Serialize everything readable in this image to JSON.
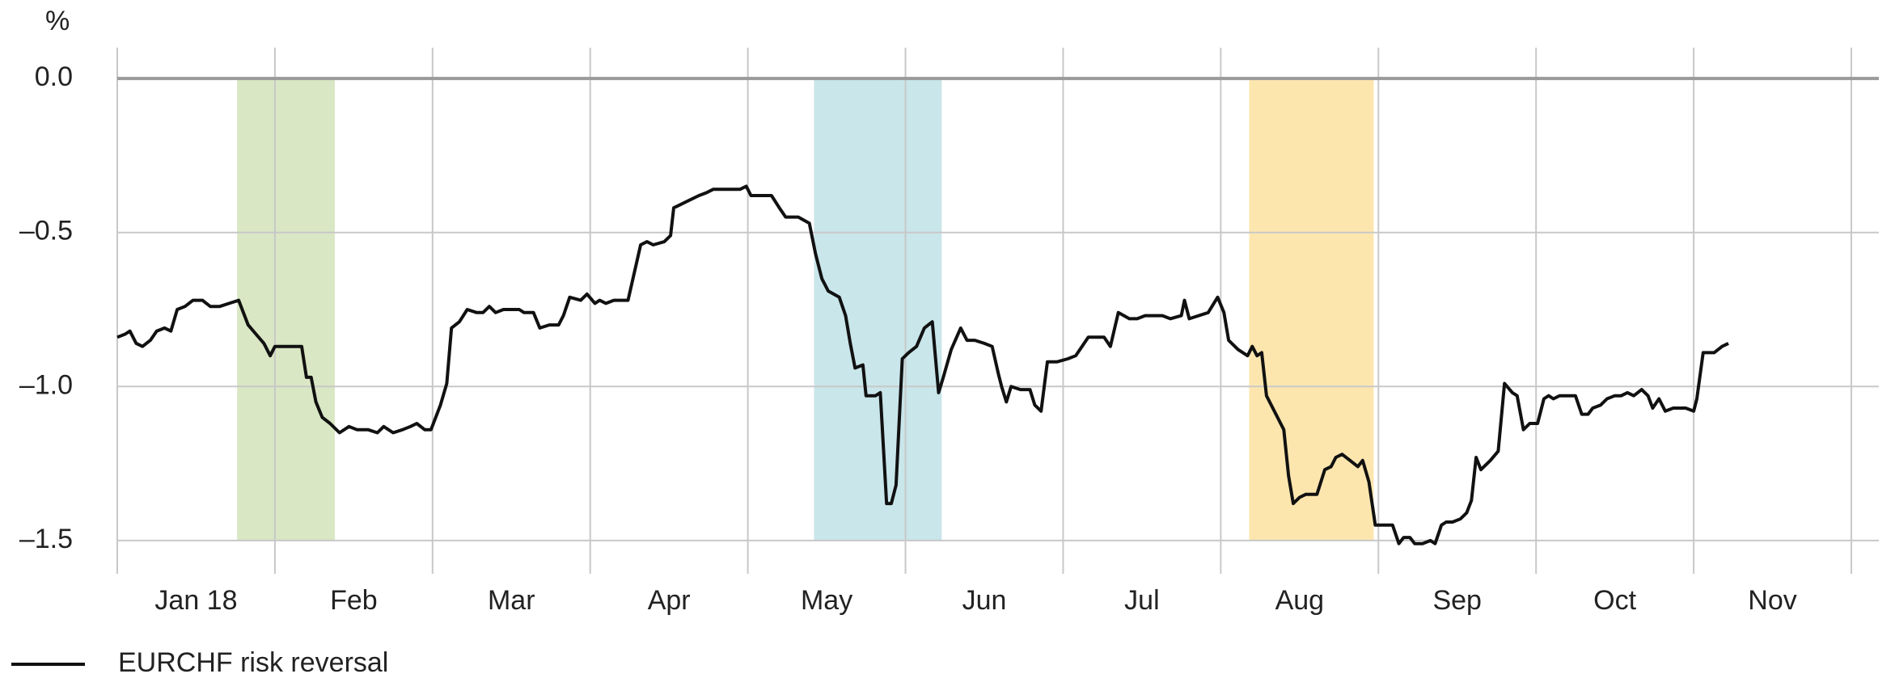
{
  "chart_data": {
    "type": "line",
    "y_unit": "%",
    "xlim": [
      0,
      11
    ],
    "xticks": [
      0,
      1,
      2,
      3,
      4,
      5,
      6,
      7,
      8,
      9,
      10,
      11
    ],
    "month_labels": [
      "Jan 18",
      "Feb",
      "Mar",
      "Apr",
      "May",
      "Jun",
      "Jul",
      "Aug",
      "Sep",
      "Oct",
      "Nov"
    ],
    "ylim": [
      -1.6,
      0.1
    ],
    "yticks": [
      {
        "value": 0,
        "label": "0.0"
      },
      {
        "value": -0.5,
        "label": "–0.5"
      },
      {
        "value": -1.0,
        "label": "–1.0"
      },
      {
        "value": -1.5,
        "label": "–1.5"
      }
    ],
    "grid": true,
    "highlights": [
      {
        "from": 0.76,
        "to": 1.38,
        "color": "#d9e7c4"
      },
      {
        "from": 4.42,
        "to": 5.23,
        "color": "#c9e6ea"
      },
      {
        "from": 7.18,
        "to": 7.97,
        "color": "#fde6ae"
      }
    ],
    "x": [
      0.0,
      0.05,
      0.08,
      0.12,
      0.16,
      0.21,
      0.25,
      0.3,
      0.34,
      0.38,
      0.43,
      0.48,
      0.54,
      0.59,
      0.65,
      0.71,
      0.77,
      0.83,
      0.88,
      0.93,
      0.97,
      1.0,
      1.05,
      1.1,
      1.17,
      1.2,
      1.23,
      1.26,
      1.3,
      1.35,
      1.41,
      1.47,
      1.52,
      1.59,
      1.65,
      1.69,
      1.75,
      1.81,
      1.86,
      1.9,
      1.95,
      1.99,
      2.05,
      2.09,
      2.12,
      2.17,
      2.22,
      2.28,
      2.32,
      2.36,
      2.4,
      2.45,
      2.49,
      2.55,
      2.58,
      2.64,
      2.68,
      2.74,
      2.8,
      2.83,
      2.87,
      2.94,
      2.98,
      3.03,
      3.06,
      3.1,
      3.15,
      3.24,
      3.28,
      3.32,
      3.36,
      3.4,
      3.47,
      3.51,
      3.53,
      3.57,
      3.61,
      3.69,
      3.74,
      3.78,
      3.83,
      3.9,
      3.95,
      3.99,
      4.02,
      4.15,
      4.2,
      4.24,
      4.28,
      4.32,
      4.39,
      4.43,
      4.47,
      4.51,
      4.58,
      4.62,
      4.65,
      4.68,
      4.73,
      4.75,
      4.81,
      4.84,
      4.88,
      4.91,
      4.94,
      4.98,
      5.02,
      5.07,
      5.12,
      5.17,
      5.21,
      5.24,
      5.29,
      5.35,
      5.39,
      5.44,
      5.5,
      5.55,
      5.59,
      5.61,
      5.64,
      5.67,
      5.73,
      5.79,
      5.82,
      5.86,
      5.9,
      5.96,
      6.03,
      6.08,
      6.12,
      6.16,
      6.26,
      6.3,
      6.35,
      6.42,
      6.47,
      6.52,
      6.58,
      6.63,
      6.68,
      6.75,
      6.77,
      6.8,
      6.86,
      6.92,
      6.98,
      7.02,
      7.05,
      7.11,
      7.17,
      7.2,
      7.23,
      7.26,
      7.29,
      7.33,
      7.36,
      7.4,
      7.43,
      7.46,
      7.5,
      7.54,
      7.61,
      7.66,
      7.7,
      7.73,
      7.77,
      7.82,
      7.87,
      7.9,
      7.94,
      7.98,
      8.03,
      8.09,
      8.13,
      8.16,
      8.2,
      8.23,
      8.28,
      8.33,
      8.36,
      8.4,
      8.43,
      8.47,
      8.52,
      8.56,
      8.59,
      8.62,
      8.65,
      8.71,
      8.76,
      8.8,
      8.85,
      8.88,
      8.92,
      8.96,
      9.01,
      9.05,
      9.08,
      9.11,
      9.15,
      9.19,
      9.25,
      9.29,
      9.33,
      9.36,
      9.41,
      9.45,
      9.5,
      9.54,
      9.58,
      9.62,
      9.67,
      9.71,
      9.74,
      9.78,
      9.82,
      9.87,
      9.95,
      10.0,
      10.02,
      10.06,
      10.13,
      10.18,
      10.22
    ],
    "series": [
      {
        "name": "EURCHF risk reversal",
        "color": "#111111",
        "values": [
          -0.84,
          -0.83,
          -0.82,
          -0.86,
          -0.87,
          -0.85,
          -0.82,
          -0.81,
          -0.82,
          -0.75,
          -0.74,
          -0.72,
          -0.72,
          -0.74,
          -0.74,
          -0.73,
          -0.72,
          -0.8,
          -0.83,
          -0.86,
          -0.9,
          -0.87,
          -0.87,
          -0.87,
          -0.87,
          -0.97,
          -0.97,
          -1.05,
          -1.1,
          -1.12,
          -1.15,
          -1.13,
          -1.14,
          -1.14,
          -1.15,
          -1.13,
          -1.15,
          -1.14,
          -1.13,
          -1.12,
          -1.14,
          -1.14,
          -1.06,
          -0.99,
          -0.81,
          -0.79,
          -0.75,
          -0.76,
          -0.76,
          -0.74,
          -0.76,
          -0.75,
          -0.75,
          -0.75,
          -0.76,
          -0.76,
          -0.81,
          -0.8,
          -0.8,
          -0.77,
          -0.71,
          -0.72,
          -0.7,
          -0.73,
          -0.72,
          -0.73,
          -0.72,
          -0.72,
          -0.63,
          -0.54,
          -0.53,
          -0.54,
          -0.53,
          -0.51,
          -0.42,
          -0.41,
          -0.4,
          -0.38,
          -0.37,
          -0.36,
          -0.36,
          -0.36,
          -0.36,
          -0.35,
          -0.38,
          -0.38,
          -0.42,
          -0.45,
          -0.45,
          -0.45,
          -0.47,
          -0.57,
          -0.65,
          -0.69,
          -0.71,
          -0.77,
          -0.86,
          -0.94,
          -0.93,
          -1.03,
          -1.03,
          -1.02,
          -1.38,
          -1.38,
          -1.32,
          -0.91,
          -0.89,
          -0.87,
          -0.81,
          -0.79,
          -1.02,
          -0.97,
          -0.88,
          -0.81,
          -0.85,
          -0.85,
          -0.86,
          -0.87,
          -0.96,
          -1.0,
          -1.05,
          -1.0,
          -1.01,
          -1.01,
          -1.06,
          -1.08,
          -0.92,
          -0.92,
          -0.91,
          -0.9,
          -0.87,
          -0.84,
          -0.84,
          -0.87,
          -0.76,
          -0.78,
          -0.78,
          -0.77,
          -0.77,
          -0.77,
          -0.78,
          -0.77,
          -0.72,
          -0.78,
          -0.77,
          -0.76,
          -0.71,
          -0.76,
          -0.85,
          -0.88,
          -0.9,
          -0.87,
          -0.9,
          -0.89,
          -1.03,
          -1.07,
          -1.1,
          -1.14,
          -1.29,
          -1.38,
          -1.36,
          -1.35,
          -1.35,
          -1.27,
          -1.26,
          -1.23,
          -1.22,
          -1.24,
          -1.26,
          -1.24,
          -1.31,
          -1.45,
          -1.45,
          -1.45,
          -1.51,
          -1.49,
          -1.49,
          -1.51,
          -1.51,
          -1.5,
          -1.51,
          -1.45,
          -1.44,
          -1.44,
          -1.43,
          -1.41,
          -1.37,
          -1.23,
          -1.27,
          -1.24,
          -1.21,
          -0.99,
          -1.02,
          -1.03,
          -1.14,
          -1.12,
          -1.12,
          -1.04,
          -1.03,
          -1.04,
          -1.03,
          -1.03,
          -1.03,
          -1.09,
          -1.09,
          -1.07,
          -1.06,
          -1.04,
          -1.03,
          -1.03,
          -1.02,
          -1.03,
          -1.01,
          -1.03,
          -1.07,
          -1.04,
          -1.08,
          -1.07,
          -1.07,
          -1.08,
          -1.04,
          -0.89,
          -0.89,
          -0.87,
          -0.86
        ]
      }
    ]
  }
}
